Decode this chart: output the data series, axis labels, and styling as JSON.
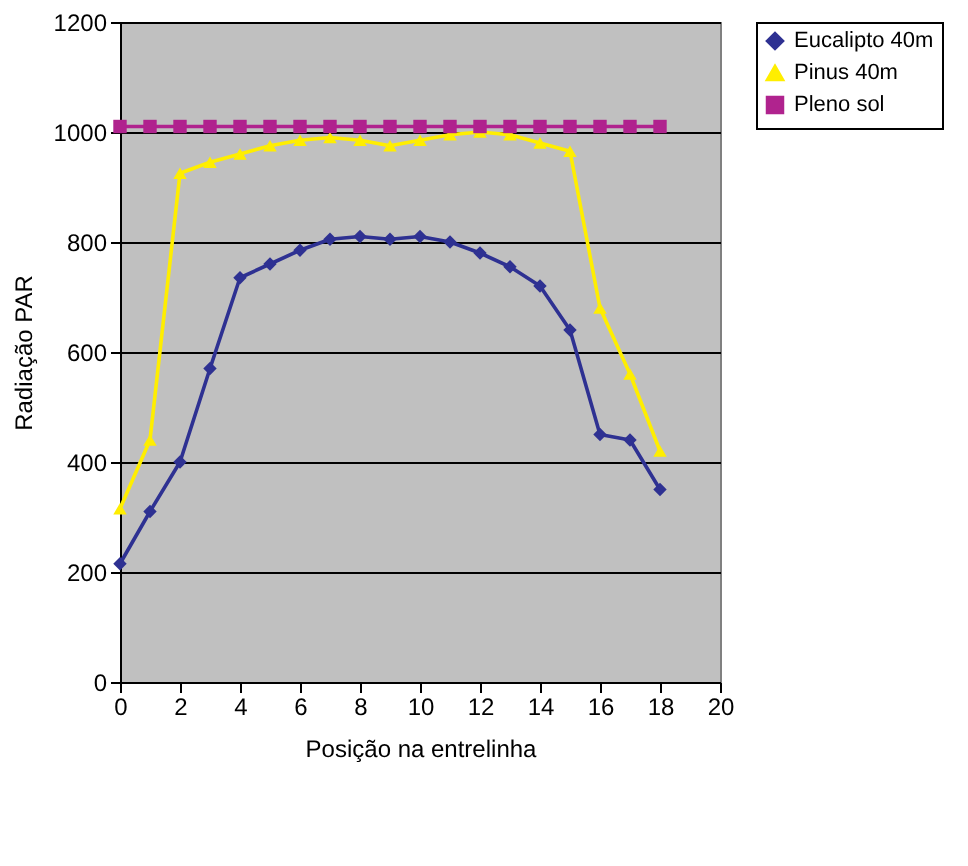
{
  "chart_data": {
    "type": "line",
    "xlabel": "Posição na entrelinha",
    "ylabel": "Radiação PAR",
    "x": [
      0,
      1,
      2,
      3,
      4,
      5,
      6,
      7,
      8,
      9,
      10,
      11,
      12,
      13,
      14,
      15,
      16,
      17,
      18
    ],
    "series": [
      {
        "name": "Eucalipto 40m",
        "color": "#2e3192",
        "marker": "diamond",
        "values": [
          215,
          310,
          400,
          570,
          735,
          760,
          785,
          805,
          810,
          805,
          810,
          800,
          780,
          755,
          720,
          640,
          450,
          440,
          350
        ]
      },
      {
        "name": "Pinus 40m",
        "color": "#ffee00",
        "marker": "triangle",
        "values": [
          315,
          440,
          925,
          945,
          960,
          975,
          985,
          990,
          985,
          975,
          985,
          995,
          1000,
          995,
          980,
          965,
          680,
          560,
          420
        ]
      },
      {
        "name": "Pleno sol",
        "color": "#b0238e",
        "marker": "square",
        "values": [
          1010,
          1010,
          1010,
          1010,
          1010,
          1010,
          1010,
          1010,
          1010,
          1010,
          1010,
          1010,
          1010,
          1010,
          1010,
          1010,
          1010,
          1010,
          1010
        ]
      }
    ],
    "xlim": [
      0,
      20
    ],
    "xticks": [
      0,
      2,
      4,
      6,
      8,
      10,
      12,
      14,
      16,
      18,
      20
    ],
    "ylim": [
      0,
      1200
    ],
    "yticks": [
      0,
      200,
      400,
      600,
      800,
      1000,
      1200
    ],
    "grid": "y",
    "legend": "top right"
  }
}
